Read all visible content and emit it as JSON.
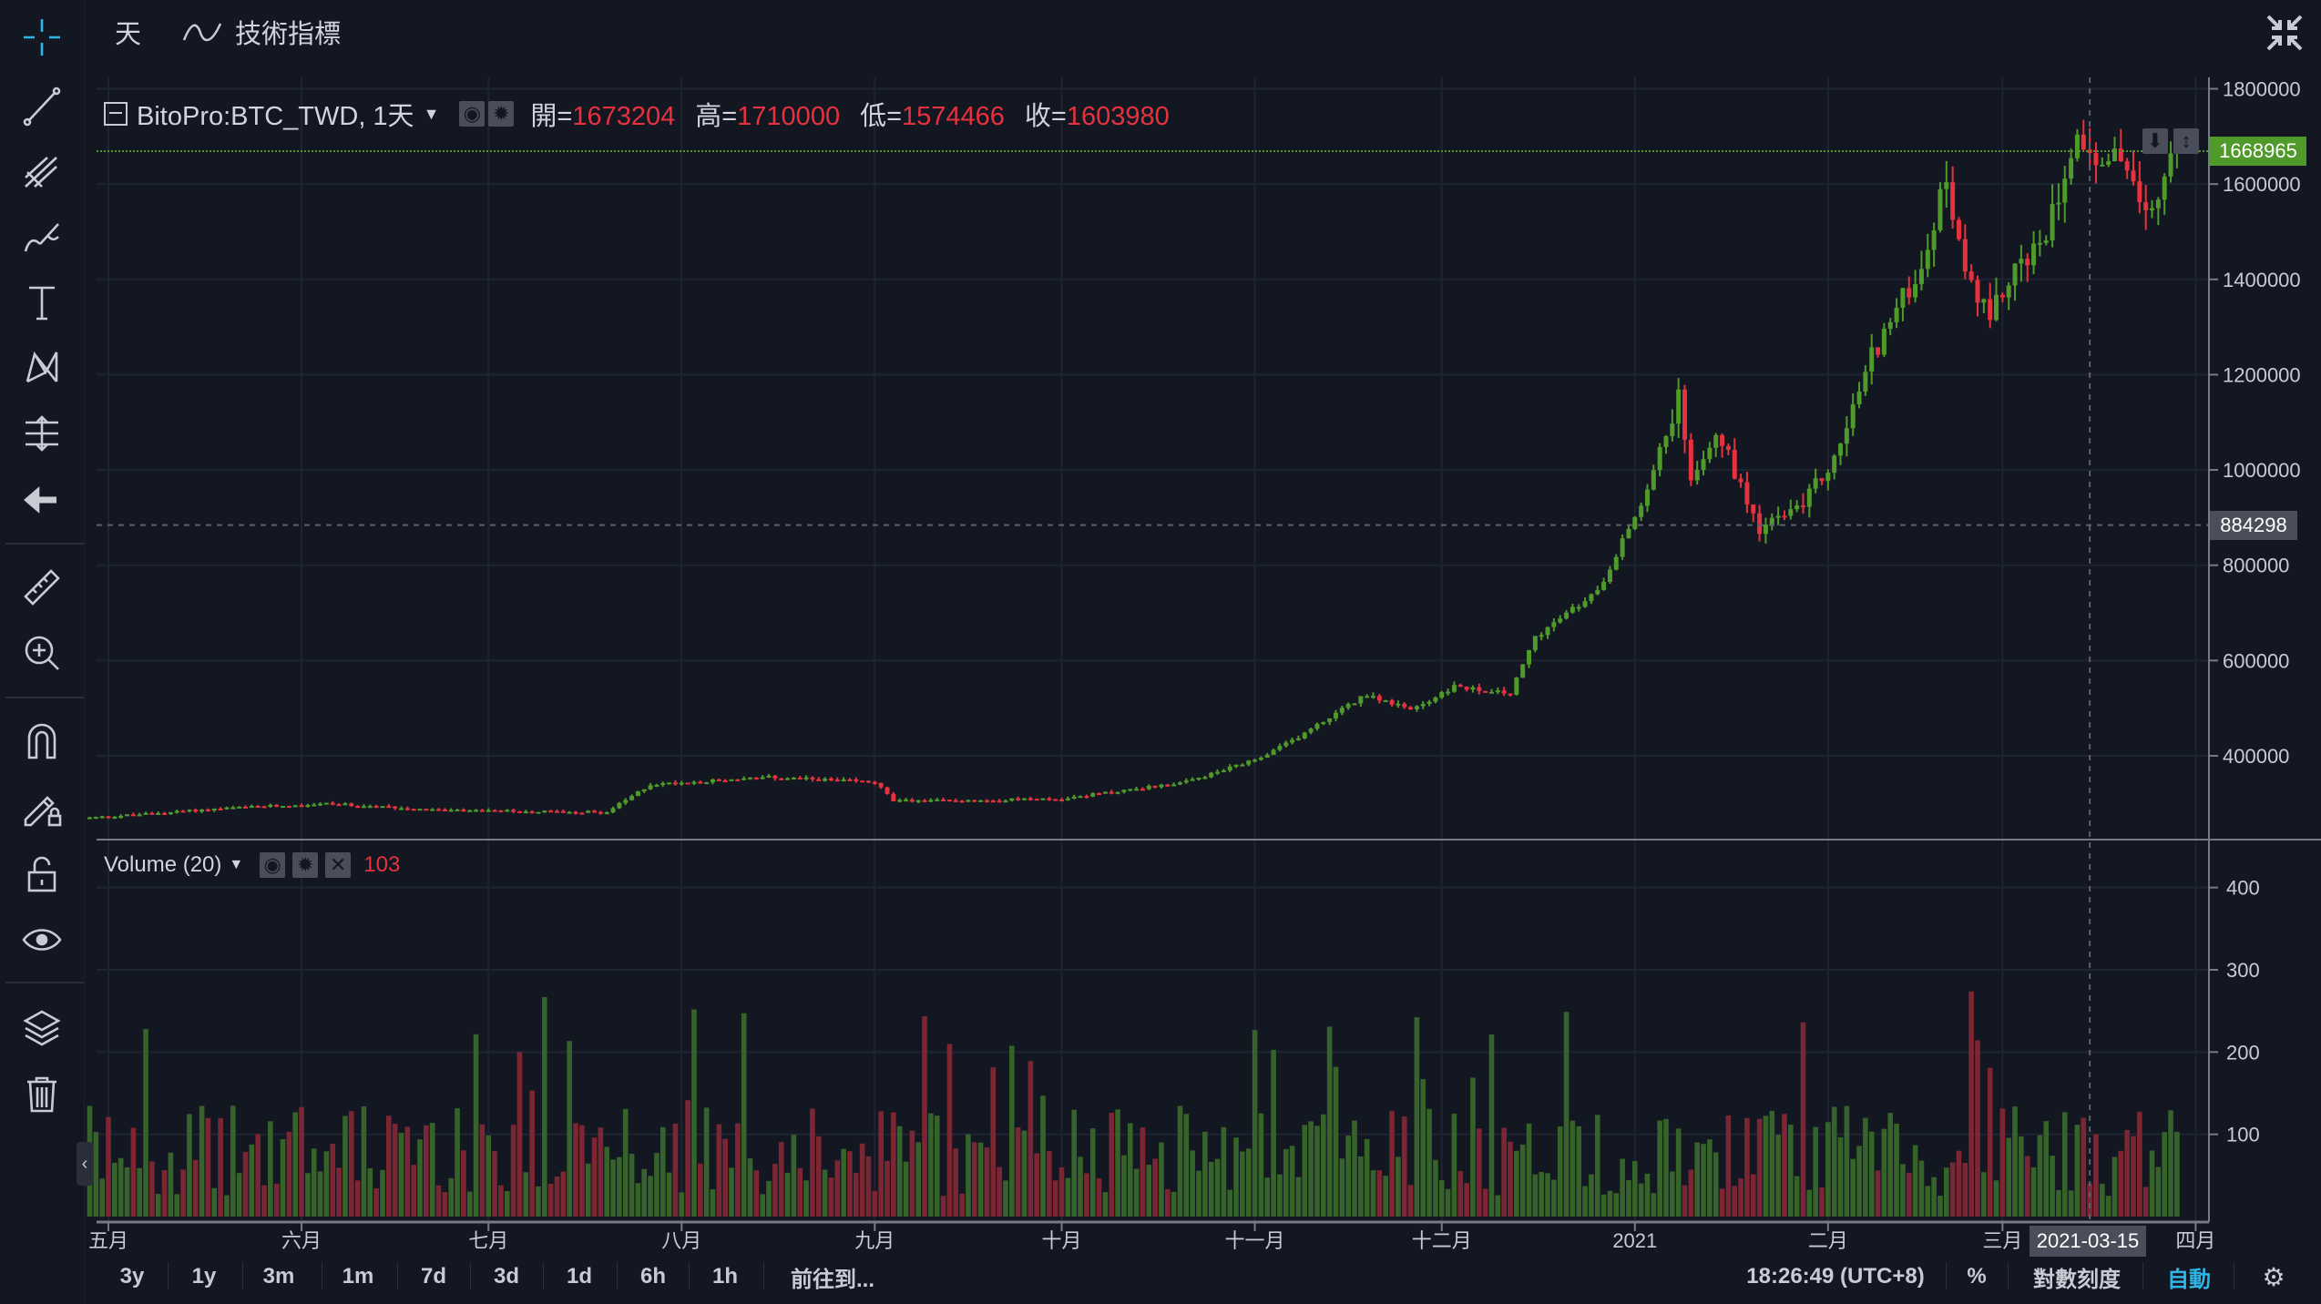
{
  "topbar": {
    "interval_label": "天",
    "indicators_label": "技術指標"
  },
  "legend": {
    "symbol": "BitoPro:BTC_TWD, 1天",
    "open_label": "開=",
    "open": "1673204",
    "high_label": "高=",
    "high": "1710000",
    "low_label": "低=",
    "low": "1574466",
    "close_label": "收=",
    "close": "1603980"
  },
  "volume_legend": {
    "title": "Volume (20)",
    "value": "103"
  },
  "price_axis": {
    "last_price": "1668965",
    "crosshair_price": "884298"
  },
  "time_axis": {
    "crosshair_date": "2021-03-15"
  },
  "bottombar": {
    "ranges": [
      "3y",
      "1y",
      "3m",
      "1m",
      "7d",
      "3d",
      "1d",
      "6h",
      "1h"
    ],
    "goto": "前往到...",
    "clock": "18:26:49 (UTC+8)",
    "percent": "%",
    "log_scale": "對數刻度",
    "auto": "自動"
  },
  "colors": {
    "background": "#131722",
    "up": "#4f9a2a",
    "down": "#e5323e",
    "accent": "#2fb5e6",
    "last_price_bg": "#4f9a2a"
  },
  "chart_data": [
    {
      "type": "candlestick",
      "title": "BitoPro:BTC_TWD, 1天",
      "start_date": "2020-04-28",
      "end_date": "2021-03-29",
      "ylim": [
        250000,
        1850000
      ],
      "y_ticks": [
        400000,
        600000,
        800000,
        1000000,
        1200000,
        1400000,
        1600000,
        1800000
      ],
      "x_ticks": [
        {
          "label": "五月",
          "date": "2020-05-01"
        },
        {
          "label": "六月",
          "date": "2020-06-01"
        },
        {
          "label": "七月",
          "date": "2020-07-01"
        },
        {
          "label": "八月",
          "date": "2020-08-01"
        },
        {
          "label": "九月",
          "date": "2020-09-01"
        },
        {
          "label": "十月",
          "date": "2020-10-01"
        },
        {
          "label": "十一月",
          "date": "2020-11-01"
        },
        {
          "label": "十二月",
          "date": "2020-12-01"
        },
        {
          "label": "2021",
          "date": "2021-01-01"
        },
        {
          "label": "二月",
          "date": "2021-02-01"
        },
        {
          "label": "三月",
          "date": "2021-03-01"
        },
        {
          "label": "四月",
          "date": "2021-04-01"
        }
      ],
      "close_keypoints": [
        [
          "2020-04-28",
          270000
        ],
        [
          "2020-05-20",
          290000
        ],
        [
          "2020-06-05",
          300000
        ],
        [
          "2020-06-25",
          285000
        ],
        [
          "2020-07-20",
          282000
        ],
        [
          "2020-07-27",
          340000
        ],
        [
          "2020-08-15",
          355000
        ],
        [
          "2020-09-01",
          345000
        ],
        [
          "2020-09-04",
          305000
        ],
        [
          "2020-10-01",
          310000
        ],
        [
          "2020-10-21",
          345000
        ],
        [
          "2020-11-02",
          395000
        ],
        [
          "2020-11-08",
          440000
        ],
        [
          "2020-11-19",
          530000
        ],
        [
          "2020-11-26",
          495000
        ],
        [
          "2020-12-03",
          545000
        ],
        [
          "2020-12-12",
          530000
        ],
        [
          "2020-12-16",
          650000
        ],
        [
          "2020-12-26",
          745000
        ],
        [
          "2021-01-02",
          930000
        ],
        [
          "2021-01-08",
          1150000
        ],
        [
          "2021-01-10",
          990000
        ],
        [
          "2021-01-14",
          1085000
        ],
        [
          "2021-01-21",
          880000
        ],
        [
          "2021-01-27",
          915000
        ],
        [
          "2021-02-02",
          1020000
        ],
        [
          "2021-02-08",
          1240000
        ],
        [
          "2021-02-16",
          1430000
        ],
        [
          "2021-02-20",
          1615000
        ],
        [
          "2021-02-23",
          1400000
        ],
        [
          "2021-02-27",
          1320000
        ],
        [
          "2021-03-02",
          1410000
        ],
        [
          "2021-03-07",
          1460000
        ],
        [
          "2021-03-11",
          1630000
        ],
        [
          "2021-03-13",
          1722000
        ],
        [
          "2021-03-17",
          1615000
        ],
        [
          "2021-03-20",
          1675000
        ],
        [
          "2021-03-24",
          1520000
        ],
        [
          "2021-03-29",
          1668965
        ]
      ]
    },
    {
      "type": "bar",
      "title": "Volume (20)",
      "ylim": [
        0,
        450
      ],
      "y_ticks": [
        100,
        200,
        300,
        400
      ],
      "last_value": 103
    }
  ]
}
